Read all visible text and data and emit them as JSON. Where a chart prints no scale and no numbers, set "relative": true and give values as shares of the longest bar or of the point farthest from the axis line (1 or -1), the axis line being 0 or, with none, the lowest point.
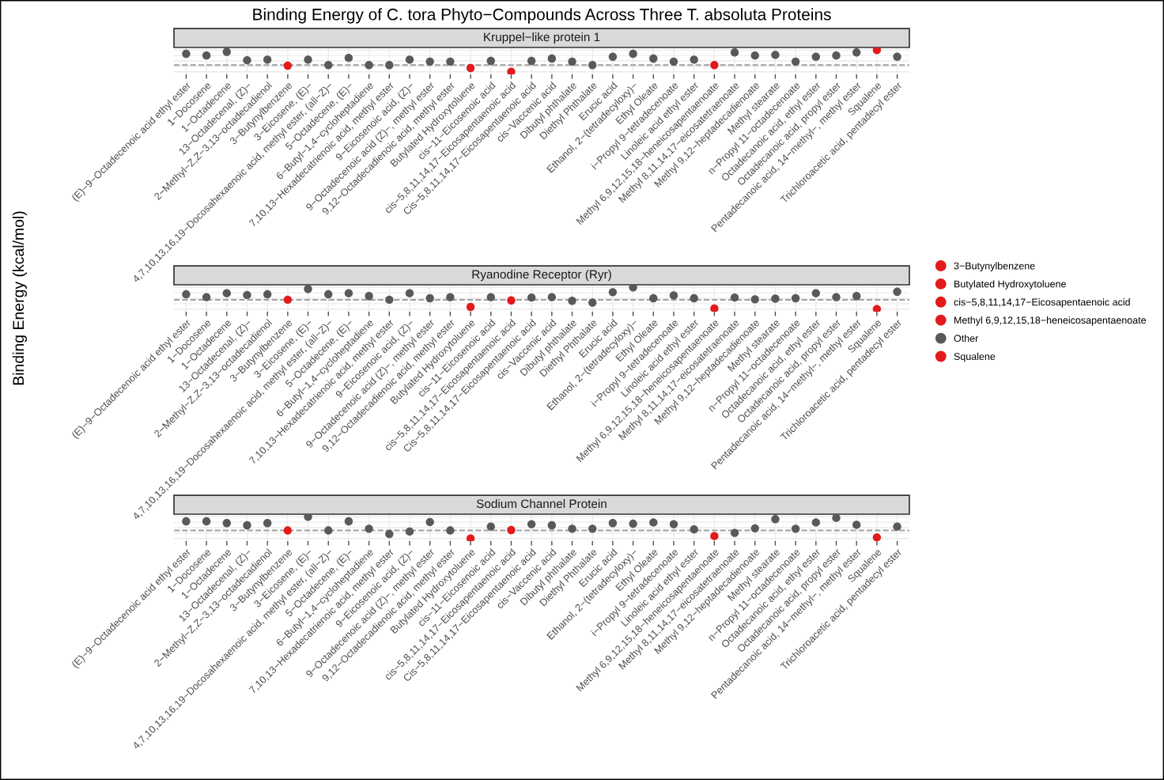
{
  "chart_data": [
    {
      "type": "scatter",
      "title": "Binding Energy of C. tora Phyto−Compounds Across Three T. absoluta Proteins",
      "subtitle": "Kruppel−like protein 1",
      "relative": true,
      "grid": true,
      "marker": "circle",
      "legend": "right",
      "categories": [
        "(E)−9−Octadecenoic acid ethyl ester",
        "1−Docosene",
        "1−Octadecene",
        "13−Octadecenal, (Z)−",
        "2−Methyl−Z,Z−3,13−octadecadienol",
        "3−Butynylbenzene",
        "3−Eicosene, (E)−",
        "4,7,10,13,16,19−Docosahexaenoic acid, methyl ester, (all−Z)−",
        "5−Octadecene, (E)−",
        "6−Butyl−1,4−cycloheptadiene",
        "7,10,13−Hexadecatrienoic acid, methyl ester",
        "9−Eicosenoic acid, (Z)−",
        "9−Octadecenoic acid (Z)−, methyl ester",
        "9,12−Octadecadienoic acid, methyl ester",
        "Butylated Hydroxytoluene",
        "cis−11−Eicosenoic acid",
        "cis−5,8,11,14,17−Eicosapentaenoic acid",
        "Cis−5,8,11,14,17−Eicosapentaenoic acid",
        "cis−Vaccenic acid",
        "Dibutyl phthalate",
        "Diethyl Phthalate",
        "Erucic acid",
        "Ethanol, 2−(tetradecyloxy)−",
        "Ethyl Oleate",
        "i−Propyl 9−tetradecenoate",
        "Linoleic acid ethyl ester",
        "Methyl 6,9,12,15,18−heneicosapentaenoate",
        "Methyl 8,11,14,17−eicosatetraenoate",
        "Methyl 9,12−heptadecadienoate",
        "Methyl stearate",
        "n−Propyl 11−octadecenoate",
        "Octadecanoic acid, ethyl ester",
        "Octadecanoic acid, propyl ester",
        "Pentadecanoic acid, 14−methyl−, methyl ester",
        "Squalene",
        "Trichloroacetic acid, pentadecyl ester"
      ],
      "ref_lines": [
        {
          "axis": "y",
          "value": 0.31,
          "color": "#a0a0a0",
          "line_style": "dashed"
        }
      ],
      "series": [
        {
          "name": "3−Butynylbenzene",
          "color": "#e31a1c",
          "values": [
            null,
            null,
            null,
            null,
            null,
            0.28,
            null,
            null,
            null,
            null,
            null,
            null,
            null,
            null,
            null,
            null,
            null,
            null,
            null,
            null,
            null,
            null,
            null,
            null,
            null,
            null,
            null,
            null,
            null,
            null,
            null,
            null,
            null,
            null,
            null,
            null
          ]
        },
        {
          "name": "Butylated Hydroxytoluene",
          "color": "#e31a1c",
          "values": [
            null,
            null,
            null,
            null,
            null,
            null,
            null,
            null,
            null,
            null,
            null,
            null,
            null,
            null,
            0.17,
            null,
            null,
            null,
            null,
            null,
            null,
            null,
            null,
            null,
            null,
            null,
            null,
            null,
            null,
            null,
            null,
            null,
            null,
            null,
            null,
            null
          ]
        },
        {
          "name": "cis−5,8,11,14,17−Eicosapentaenoic acid",
          "color": "#e31a1c",
          "values": [
            null,
            null,
            null,
            null,
            null,
            null,
            null,
            null,
            null,
            null,
            null,
            null,
            null,
            null,
            null,
            null,
            0,
            null,
            null,
            null,
            null,
            null,
            null,
            null,
            null,
            null,
            null,
            null,
            null,
            null,
            null,
            null,
            null,
            null,
            null,
            null
          ]
        },
        {
          "name": "Methyl 6,9,12,15,18−heneicosapentaenoate",
          "color": "#e31a1c",
          "values": [
            null,
            null,
            null,
            null,
            null,
            null,
            null,
            null,
            null,
            null,
            null,
            null,
            null,
            null,
            null,
            null,
            null,
            null,
            null,
            null,
            null,
            null,
            null,
            null,
            null,
            null,
            0.31,
            null,
            null,
            null,
            null,
            null,
            null,
            null,
            null,
            null
          ]
        },
        {
          "name": "Other",
          "color": "#595959",
          "values": [
            0.83,
            0.75,
            0.92,
            0.53,
            0.56,
            null,
            0.56,
            0.31,
            0.64,
            0.31,
            0.31,
            0.56,
            0.47,
            0.47,
            null,
            0.5,
            null,
            0.5,
            0.61,
            0.47,
            0.31,
            0.69,
            0.83,
            0.61,
            0.47,
            0.56,
            null,
            0.89,
            0.75,
            0.78,
            0.47,
            0.69,
            0.75,
            0.89,
            null,
            0.69
          ]
        },
        {
          "name": "Squalene",
          "color": "#e31a1c",
          "values": [
            null,
            null,
            null,
            null,
            null,
            null,
            null,
            null,
            null,
            null,
            null,
            null,
            null,
            null,
            null,
            null,
            null,
            null,
            null,
            null,
            null,
            null,
            null,
            null,
            null,
            null,
            null,
            null,
            null,
            null,
            null,
            null,
            null,
            null,
            1,
            null
          ]
        }
      ]
    },
    {
      "type": "scatter",
      "subtitle": "Ryanodine Receptor (Ryr)",
      "ylabel": "Binding Energy (kcal/mol)",
      "relative": true,
      "grid": true,
      "marker": "circle",
      "categories": [
        "(E)−9−Octadecenoic acid ethyl ester",
        "1−Docosene",
        "1−Octadecene",
        "13−Octadecenal, (Z)−",
        "2−Methyl−Z,Z−3,13−octadecadienol",
        "3−Butynylbenzene",
        "3−Eicosene, (E)−",
        "4,7,10,13,16,19−Docosahexaenoic acid, methyl ester, (all−Z)−",
        "5−Octadecene, (E)−",
        "6−Butyl−1,4−cycloheptadiene",
        "7,10,13−Hexadecatrienoic acid, methyl ester",
        "9−Eicosenoic acid, (Z)−",
        "9−Octadecenoic acid (Z)−, methyl ester",
        "9,12−Octadecadienoic acid, methyl ester",
        "Butylated Hydroxytoluene",
        "cis−11−Eicosenoic acid",
        "cis−5,8,11,14,17−Eicosapentaenoic acid",
        "Cis−5,8,11,14,17−Eicosapentaenoic acid",
        "cis−Vaccenic acid",
        "Dibutyl phthalate",
        "Diethyl Phthalate",
        "Erucic acid",
        "Ethanol, 2−(tetradecyloxy)−",
        "Ethyl Oleate",
        "i−Propyl 9−tetradecenoate",
        "Linoleic acid ethyl ester",
        "Methyl 6,9,12,15,18−heneicosapentaenoate",
        "Methyl 8,11,14,17−eicosatetraenoate",
        "Methyl 9,12−heptadecadienoate",
        "Methyl stearate",
        "n−Propyl 11−octadecenoate",
        "Octadecanoic acid, ethyl ester",
        "Octadecanoic acid, propyl ester",
        "Pentadecanoic acid, 14−methyl−, methyl ester",
        "Squalene",
        "Trichloroacetic acid, pentadecyl ester"
      ],
      "ref_lines": [
        {
          "axis": "y",
          "value": 0.43,
          "color": "#a0a0a0",
          "line_style": "dashed"
        }
      ],
      "series": [
        {
          "color": "#e31a1c",
          "values": [
            null,
            null,
            null,
            null,
            null,
            0.43,
            null,
            null,
            null,
            null,
            null,
            null,
            null,
            null,
            null,
            null,
            null,
            null,
            null,
            null,
            null,
            null,
            null,
            null,
            null,
            null,
            null,
            null,
            null,
            null,
            null,
            null,
            null,
            null,
            null,
            null
          ]
        },
        {
          "color": "#e31a1c",
          "values": [
            null,
            null,
            null,
            null,
            null,
            null,
            null,
            null,
            null,
            null,
            null,
            null,
            null,
            null,
            0.1,
            null,
            null,
            null,
            null,
            null,
            null,
            null,
            null,
            null,
            null,
            null,
            null,
            null,
            null,
            null,
            null,
            null,
            null,
            null,
            null,
            null
          ]
        },
        {
          "color": "#e31a1c",
          "values": [
            null,
            null,
            null,
            null,
            null,
            null,
            null,
            null,
            null,
            null,
            null,
            null,
            null,
            null,
            null,
            null,
            0.4,
            null,
            null,
            null,
            null,
            null,
            null,
            null,
            null,
            null,
            null,
            null,
            null,
            null,
            null,
            null,
            null,
            null,
            null,
            null
          ]
        },
        {
          "color": "#e31a1c",
          "values": [
            null,
            null,
            null,
            null,
            null,
            null,
            null,
            null,
            null,
            null,
            null,
            null,
            null,
            null,
            null,
            null,
            null,
            null,
            null,
            null,
            null,
            null,
            null,
            null,
            null,
            null,
            0.03,
            null,
            null,
            null,
            null,
            null,
            null,
            null,
            null,
            null
          ]
        },
        {
          "color": "#595959",
          "values": [
            0.68,
            0.55,
            0.73,
            0.65,
            0.68,
            null,
            0.93,
            0.68,
            0.73,
            0.6,
            0.43,
            0.73,
            0.5,
            0.55,
            null,
            0.55,
            null,
            0.53,
            0.55,
            0.38,
            0.3,
            0.78,
            1,
            0.5,
            0.63,
            0.5,
            null,
            0.53,
            0.45,
            0.48,
            0.5,
            0.73,
            0.55,
            0.6,
            null,
            0.8
          ]
        },
        {
          "color": "#e31a1c",
          "values": [
            null,
            null,
            null,
            null,
            null,
            null,
            null,
            null,
            null,
            null,
            null,
            null,
            null,
            null,
            null,
            null,
            null,
            null,
            null,
            null,
            null,
            null,
            null,
            null,
            null,
            null,
            null,
            null,
            null,
            null,
            null,
            null,
            null,
            null,
            0,
            null
          ]
        }
      ]
    },
    {
      "type": "scatter",
      "subtitle": "Sodium Channel Protein",
      "relative": true,
      "grid": true,
      "marker": "circle",
      "categories": [
        "(E)−9−Octadecenoic acid ethyl ester",
        "1−Docosene",
        "1−Octadecene",
        "13−Octadecenal, (Z)−",
        "2−Methyl−Z,Z−3,13−octadecadienol",
        "3−Butynylbenzene",
        "3−Eicosene, (E)−",
        "4,7,10,13,16,19−Docosahexaenoic acid, methyl ester, (all−Z)−",
        "5−Octadecene, (E)−",
        "6−Butyl−1,4−cycloheptadiene",
        "7,10,13−Hexadecatrienoic acid, methyl ester",
        "9−Eicosenoic acid, (Z)−",
        "9−Octadecenoic acid (Z)−, methyl ester",
        "9,12−Octadecadienoic acid, methyl ester",
        "Butylated Hydroxytoluene",
        "cis−11−Eicosenoic acid",
        "cis−5,8,11,14,17−Eicosapentaenoic acid",
        "Cis−5,8,11,14,17−Eicosapentaenoic acid",
        "cis−Vaccenic acid",
        "Dibutyl phthalate",
        "Diethyl Phthalate",
        "Erucic acid",
        "Ethanol, 2−(tetradecyloxy)−",
        "Ethyl Oleate",
        "i−Propyl 9−tetradecenoate",
        "Linoleic acid ethyl ester",
        "Methyl 6,9,12,15,18−heneicosapentaenoate",
        "Methyl 8,11,14,17−eicosatetraenoate",
        "Methyl 9,12−heptadecadienoate",
        "Methyl stearate",
        "n−Propyl 11−octadecenoate",
        "Octadecanoic acid, ethyl ester",
        "Octadecanoic acid, propyl ester",
        "Pentadecanoic acid, 14−methyl−, methyl ester",
        "Squalene",
        "Trichloroacetic acid, pentadecyl ester"
      ],
      "ref_lines": [
        {
          "axis": "y",
          "value": 0.37,
          "color": "#a0a0a0",
          "line_style": "dashed"
        }
      ],
      "series": [
        {
          "color": "#e31a1c",
          "values": [
            null,
            null,
            null,
            null,
            null,
            0.37,
            null,
            null,
            null,
            null,
            null,
            null,
            null,
            null,
            null,
            null,
            null,
            null,
            null,
            null,
            null,
            null,
            null,
            null,
            null,
            null,
            null,
            null,
            null,
            null,
            null,
            null,
            null,
            null,
            null,
            null
          ]
        },
        {
          "color": "#e31a1c",
          "values": [
            null,
            null,
            null,
            null,
            null,
            null,
            null,
            null,
            null,
            null,
            null,
            null,
            null,
            null,
            0,
            null,
            null,
            null,
            null,
            null,
            null,
            null,
            null,
            null,
            null,
            null,
            null,
            null,
            null,
            null,
            null,
            null,
            null,
            null,
            null,
            null
          ]
        },
        {
          "color": "#e31a1c",
          "values": [
            null,
            null,
            null,
            null,
            null,
            null,
            null,
            null,
            null,
            null,
            null,
            null,
            null,
            null,
            null,
            null,
            0.39,
            null,
            null,
            null,
            null,
            null,
            null,
            null,
            null,
            null,
            null,
            null,
            null,
            null,
            null,
            null,
            null,
            null,
            null,
            null
          ]
        },
        {
          "color": "#e31a1c",
          "values": [
            null,
            null,
            null,
            null,
            null,
            null,
            null,
            null,
            null,
            null,
            null,
            null,
            null,
            null,
            null,
            null,
            null,
            null,
            null,
            null,
            null,
            null,
            null,
            null,
            null,
            null,
            0.11,
            null,
            null,
            null,
            null,
            null,
            null,
            null,
            null,
            null
          ]
        },
        {
          "color": "#595959",
          "values": [
            0.79,
            0.79,
            0.71,
            0.61,
            0.71,
            null,
            1,
            0.37,
            0.79,
            0.45,
            0.21,
            0.32,
            0.76,
            0.37,
            null,
            0.55,
            null,
            0.66,
            0.61,
            0.45,
            0.45,
            0.71,
            0.68,
            0.74,
            0.66,
            0.42,
            null,
            0.26,
            0.47,
            0.89,
            0.45,
            0.74,
            0.95,
            0.63,
            null,
            0.55
          ]
        },
        {
          "color": "#e31a1c",
          "values": [
            null,
            null,
            null,
            null,
            null,
            null,
            null,
            null,
            null,
            null,
            null,
            null,
            null,
            null,
            null,
            null,
            null,
            null,
            null,
            null,
            null,
            null,
            null,
            null,
            null,
            null,
            null,
            null,
            null,
            null,
            null,
            null,
            null,
            null,
            0.05,
            null
          ]
        }
      ]
    }
  ]
}
